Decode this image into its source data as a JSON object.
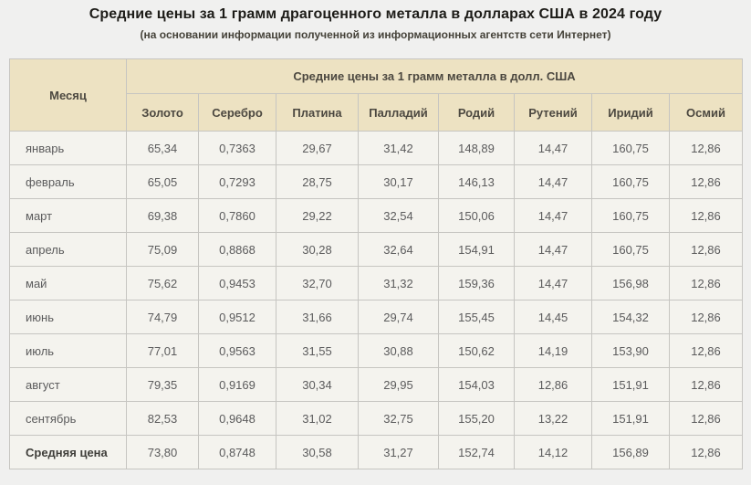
{
  "page": {
    "title": "Средние цены за 1 грамм драгоценного металла в долларах США в 2024 году",
    "subtitle": "(на основании информации полученной из информационных агентств сети Интернет)"
  },
  "colors": {
    "page_background": "#f0f0ef",
    "header_background": "#ede2c2",
    "cell_background": "#f4f3ee",
    "border": "#c6c5c1",
    "title_text": "#1d1c18",
    "header_text": "#4c4840",
    "cell_text": "#5b5b5c"
  },
  "table": {
    "month_header": "Месяц",
    "group_header": "Средние цены за 1 грамм металла в долл. США",
    "metal_headers": [
      "Золото",
      "Серебро",
      "Платина",
      "Палладий",
      "Родий",
      "Рутений",
      "Иридий",
      "Осмий"
    ],
    "rows": [
      {
        "month": "январь",
        "bold": false,
        "values": [
          "65,34",
          "0,7363",
          "29,67",
          "31,42",
          "148,89",
          "14,47",
          "160,75",
          "12,86"
        ]
      },
      {
        "month": "февраль",
        "bold": false,
        "values": [
          "65,05",
          "0,7293",
          "28,75",
          "30,17",
          "146,13",
          "14,47",
          "160,75",
          "12,86"
        ]
      },
      {
        "month": "март",
        "bold": false,
        "values": [
          "69,38",
          "0,7860",
          "29,22",
          "32,54",
          "150,06",
          "14,47",
          "160,75",
          "12,86"
        ]
      },
      {
        "month": "апрель",
        "bold": false,
        "values": [
          "75,09",
          "0,8868",
          "30,28",
          "32,64",
          "154,91",
          "14,47",
          "160,75",
          "12,86"
        ]
      },
      {
        "month": "май",
        "bold": false,
        "values": [
          "75,62",
          "0,9453",
          "32,70",
          "31,32",
          "159,36",
          "14,47",
          "156,98",
          "12,86"
        ]
      },
      {
        "month": "июнь",
        "bold": false,
        "values": [
          "74,79",
          "0,9512",
          "31,66",
          "29,74",
          "155,45",
          "14,45",
          "154,32",
          "12,86"
        ]
      },
      {
        "month": "июль",
        "bold": false,
        "values": [
          "77,01",
          "0,9563",
          "31,55",
          "30,88",
          "150,62",
          "14,19",
          "153,90",
          "12,86"
        ]
      },
      {
        "month": "август",
        "bold": false,
        "values": [
          "79,35",
          "0,9169",
          "30,34",
          "29,95",
          "154,03",
          "12,86",
          "151,91",
          "12,86"
        ]
      },
      {
        "month": "сентябрь",
        "bold": false,
        "values": [
          "82,53",
          "0,9648",
          "31,02",
          "32,75",
          "155,20",
          "13,22",
          "151,91",
          "12,86"
        ]
      },
      {
        "month": "Средняя цена",
        "bold": true,
        "values": [
          "73,80",
          "0,8748",
          "30,58",
          "31,27",
          "152,74",
          "14,12",
          "156,89",
          "12,86"
        ]
      }
    ]
  },
  "chart_data": {
    "type": "table",
    "title": "Средние цены за 1 грамм драгоценного металла в долларах США в 2024 году",
    "subtitle": "(на основании информации полученной из информационных агентств сети Интернет)",
    "group_header": "Средние цены за 1 грамм металла в долл. США",
    "columns": [
      "Месяц",
      "Золото",
      "Серебро",
      "Платина",
      "Палладий",
      "Родий",
      "Рутений",
      "Иридий",
      "Осмий"
    ],
    "rows": [
      [
        "январь",
        65.34,
        0.7363,
        29.67,
        31.42,
        148.89,
        14.47,
        160.75,
        12.86
      ],
      [
        "февраль",
        65.05,
        0.7293,
        28.75,
        30.17,
        146.13,
        14.47,
        160.75,
        12.86
      ],
      [
        "март",
        69.38,
        0.786,
        29.22,
        32.54,
        150.06,
        14.47,
        160.75,
        12.86
      ],
      [
        "апрель",
        75.09,
        0.8868,
        30.28,
        32.64,
        154.91,
        14.47,
        160.75,
        12.86
      ],
      [
        "май",
        75.62,
        0.9453,
        32.7,
        31.32,
        159.36,
        14.47,
        156.98,
        12.86
      ],
      [
        "июнь",
        74.79,
        0.9512,
        31.66,
        29.74,
        155.45,
        14.45,
        154.32,
        12.86
      ],
      [
        "июль",
        77.01,
        0.9563,
        31.55,
        30.88,
        150.62,
        14.19,
        153.9,
        12.86
      ],
      [
        "август",
        79.35,
        0.9169,
        30.34,
        29.95,
        154.03,
        12.86,
        151.91,
        12.86
      ],
      [
        "сентябрь",
        82.53,
        0.9648,
        31.02,
        32.75,
        155.2,
        13.22,
        151.91,
        12.86
      ],
      [
        "Средняя цена",
        73.8,
        0.8748,
        30.58,
        31.27,
        152.74,
        14.12,
        156.89,
        12.86
      ]
    ],
    "decimal_separator": ","
  }
}
